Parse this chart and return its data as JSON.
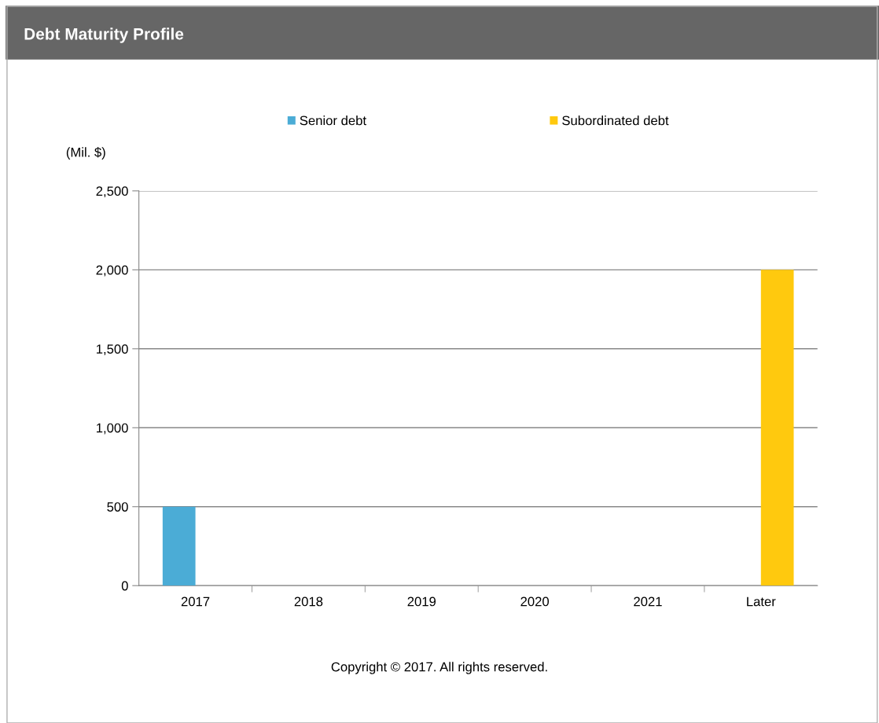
{
  "chart_data": {
    "type": "bar",
    "title": "Debt Maturity Profile",
    "ylabel": "(Mil. $)",
    "categories": [
      "2017",
      "2018",
      "2019",
      "2020",
      "2021",
      "Later"
    ],
    "series": [
      {
        "name": "Senior debt",
        "color": "#4bacd6",
        "values": [
          500,
          0,
          0,
          0,
          0,
          0
        ]
      },
      {
        "name": "Subordinated debt",
        "color": "#ffc90e",
        "values": [
          0,
          0,
          0,
          0,
          0,
          2000
        ]
      }
    ],
    "ylim": [
      0,
      2500
    ],
    "yticks": [
      {
        "value": 0,
        "label": "0"
      },
      {
        "value": 500,
        "label": "500"
      },
      {
        "value": 1000,
        "label": "1,000"
      },
      {
        "value": 1500,
        "label": "1,500"
      },
      {
        "value": 2000,
        "label": "2,000"
      },
      {
        "value": 2500,
        "label": "2,500"
      }
    ],
    "grid": "y",
    "legend": "top",
    "annotations": [
      "Copyright © 2017. All rights reserved."
    ]
  }
}
